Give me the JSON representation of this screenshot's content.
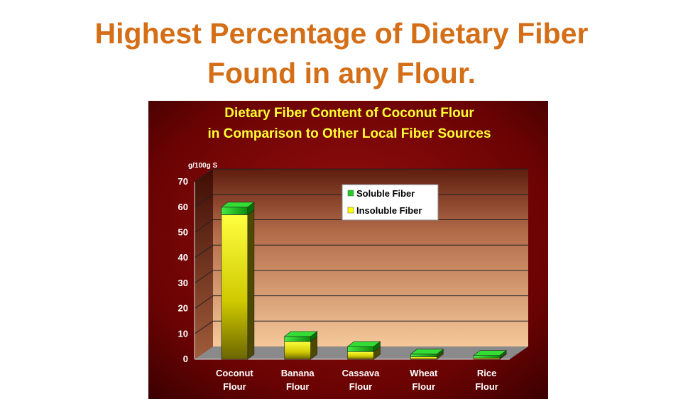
{
  "slide": {
    "title_line1": "Highest Percentage of Dietary Fiber",
    "title_line2": "Found in any Flour."
  },
  "chart_data": {
    "type": "bar",
    "title_line1": "Dietary Fiber Content of Coconut Flour",
    "title_line2": "in Comparison to Other Local Fiber Sources",
    "ylabel": "g/100g S",
    "ylim": [
      0,
      70
    ],
    "yticks": [
      0,
      10,
      20,
      30,
      40,
      50,
      60,
      70
    ],
    "categories": [
      "Coconut Flour",
      "Banana Flour",
      "Cassava Flour",
      "Wheat Flour",
      "Rice Flour"
    ],
    "category_labels": [
      [
        "Coconut",
        "Flour"
      ],
      [
        "Banana",
        "Flour"
      ],
      [
        "Cassava",
        "Flour"
      ],
      [
        "Wheat",
        "Flour"
      ],
      [
        "Rice",
        "Flour"
      ]
    ],
    "series": [
      {
        "name": "Insoluble Fiber",
        "values": [
          57,
          7,
          3,
          1,
          0.5
        ],
        "color": "#ffff00"
      },
      {
        "name": "Soluble Fiber",
        "values": [
          3,
          2,
          2,
          1,
          1
        ],
        "color": "#22cc22"
      }
    ],
    "stacked": true,
    "legend": "top-right",
    "grid": true,
    "colors": {
      "background_dark": "#5a0000",
      "background_mid": "#8b0a0a",
      "plot_wall_top": "#6b2a14",
      "plot_wall_bottom": "#f2c08c",
      "title_text": "#ffff33",
      "slide_title_text": "#d46e17"
    }
  }
}
